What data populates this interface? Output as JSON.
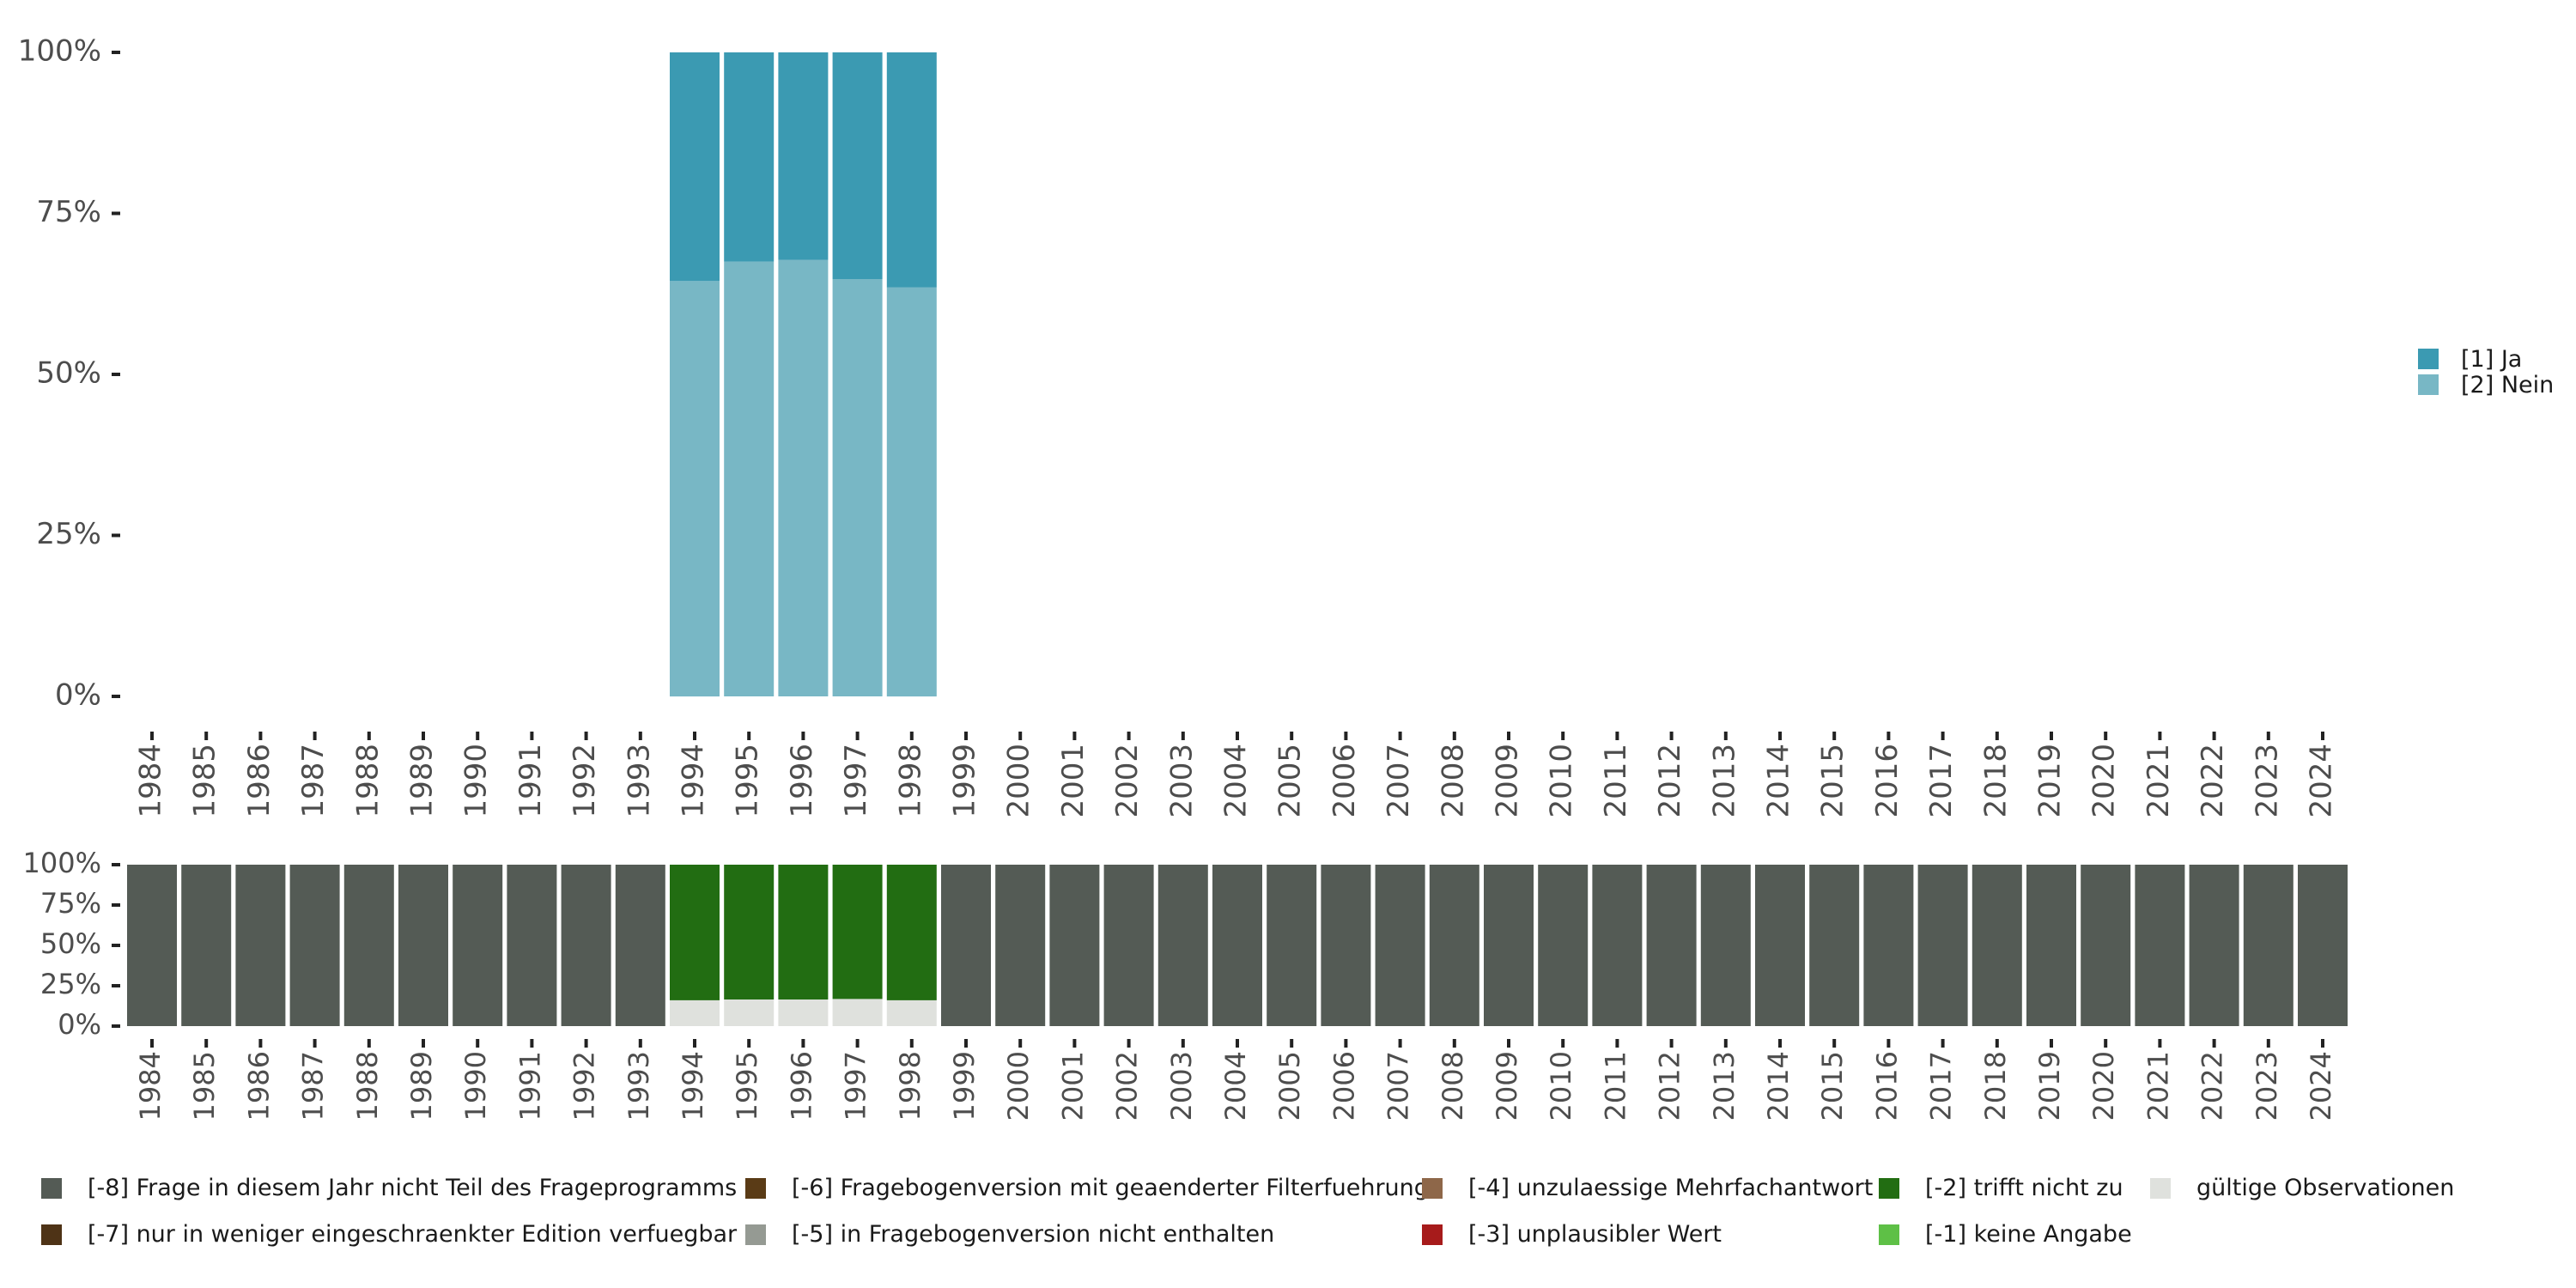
{
  "chart_data": [
    {
      "type": "bar",
      "stacked": true,
      "categories": [
        "1984",
        "1985",
        "1986",
        "1987",
        "1988",
        "1989",
        "1990",
        "1991",
        "1992",
        "1993",
        "1994",
        "1995",
        "1996",
        "1997",
        "1998",
        "1999",
        "2000",
        "2001",
        "2002",
        "2003",
        "2004",
        "2005",
        "2006",
        "2007",
        "2008",
        "2009",
        "2010",
        "2011",
        "2012",
        "2013",
        "2014",
        "2015",
        "2016",
        "2017",
        "2018",
        "2019",
        "2020",
        "2021",
        "2022",
        "2023",
        "2024"
      ],
      "y_ticks": [
        "0%",
        "25%",
        "50%",
        "75%",
        "100%"
      ],
      "ylim": [
        0,
        1
      ],
      "legend_position": "right",
      "series": [
        {
          "name": "[2] Nein",
          "color": "#78b7c5",
          "values": [
            null,
            null,
            null,
            null,
            null,
            null,
            null,
            null,
            null,
            null,
            0.645,
            0.675,
            0.678,
            0.648,
            0.635,
            null,
            null,
            null,
            null,
            null,
            null,
            null,
            null,
            null,
            null,
            null,
            null,
            null,
            null,
            null,
            null,
            null,
            null,
            null,
            null,
            null,
            null,
            null,
            null,
            null,
            null
          ]
        },
        {
          "name": "[1] Ja",
          "color": "#3b9ab2",
          "values": [
            null,
            null,
            null,
            null,
            null,
            null,
            null,
            null,
            null,
            null,
            0.355,
            0.325,
            0.322,
            0.352,
            0.365,
            null,
            null,
            null,
            null,
            null,
            null,
            null,
            null,
            null,
            null,
            null,
            null,
            null,
            null,
            null,
            null,
            null,
            null,
            null,
            null,
            null,
            null,
            null,
            null,
            null,
            null
          ]
        }
      ]
    },
    {
      "type": "bar",
      "stacked": true,
      "categories": [
        "1984",
        "1985",
        "1986",
        "1987",
        "1988",
        "1989",
        "1990",
        "1991",
        "1992",
        "1993",
        "1994",
        "1995",
        "1996",
        "1997",
        "1998",
        "1999",
        "2000",
        "2001",
        "2002",
        "2003",
        "2004",
        "2005",
        "2006",
        "2007",
        "2008",
        "2009",
        "2010",
        "2011",
        "2012",
        "2013",
        "2014",
        "2015",
        "2016",
        "2017",
        "2018",
        "2019",
        "2020",
        "2021",
        "2022",
        "2023",
        "2024"
      ],
      "y_ticks": [
        "0%",
        "25%",
        "50%",
        "75%",
        "100%"
      ],
      "ylim": [
        0,
        1
      ],
      "legend_position": "bottom",
      "series": [
        {
          "name": "gültige Observationen",
          "color": "#dfe1dd",
          "values": [
            0,
            0,
            0,
            0,
            0,
            0,
            0,
            0,
            0,
            0,
            0.16,
            0.165,
            0.165,
            0.168,
            0.16,
            0,
            0,
            0,
            0,
            0,
            0,
            0,
            0,
            0,
            0,
            0,
            0,
            0,
            0,
            0,
            0,
            0,
            0,
            0,
            0,
            0,
            0,
            0,
            0,
            0,
            0
          ]
        },
        {
          "name": "[-2] trifft nicht zu",
          "color": "#226d12",
          "values": [
            0,
            0,
            0,
            0,
            0,
            0,
            0,
            0,
            0,
            0,
            0.84,
            0.835,
            0.835,
            0.832,
            0.84,
            0,
            0,
            0,
            0,
            0,
            0,
            0,
            0,
            0,
            0,
            0,
            0,
            0,
            0,
            0,
            0,
            0,
            0,
            0,
            0,
            0,
            0,
            0,
            0,
            0,
            0
          ]
        },
        {
          "name": "[-8] Frage in diesem Jahr nicht Teil des Frageprogramms",
          "color": "#545b55",
          "values": [
            1,
            1,
            1,
            1,
            1,
            1,
            1,
            1,
            1,
            1,
            0,
            0,
            0,
            0,
            0,
            1,
            1,
            1,
            1,
            1,
            1,
            1,
            1,
            1,
            1,
            1,
            1,
            1,
            1,
            1,
            1,
            1,
            1,
            1,
            1,
            1,
            1,
            1,
            1,
            1,
            1
          ]
        }
      ]
    }
  ],
  "legend_bottom": [
    {
      "label": "[-8] Frage in diesem Jahr nicht Teil des Frageprogramms",
      "color": "#545b55"
    },
    {
      "label": "[-7] nur in weniger eingeschraenkter Edition verfuegbar",
      "color": "#4e3316"
    },
    {
      "label": "[-6] Fragebogenversion mit geaenderter Filterfuehrung",
      "color": "#5a3b16"
    },
    {
      "label": "[-5] in Fragebogenversion nicht enthalten",
      "color": "#959a93"
    },
    {
      "label": "[-4] unzulaessige Mehrfachantwort",
      "color": "#8e6749"
    },
    {
      "label": "[-3] unplausibler Wert",
      "color": "#a71b1b"
    },
    {
      "label": "[-2] trifft nicht zu",
      "color": "#226d12"
    },
    {
      "label": "[-1] keine Angabe",
      "color": "#5ec046"
    },
    {
      "label": "gültige Observationen",
      "color": "#dfe1dd"
    }
  ],
  "legend_right": [
    {
      "label": "[1] Ja",
      "color": "#3b9ab2"
    },
    {
      "label": "[2] Nein",
      "color": "#78b7c5"
    }
  ]
}
